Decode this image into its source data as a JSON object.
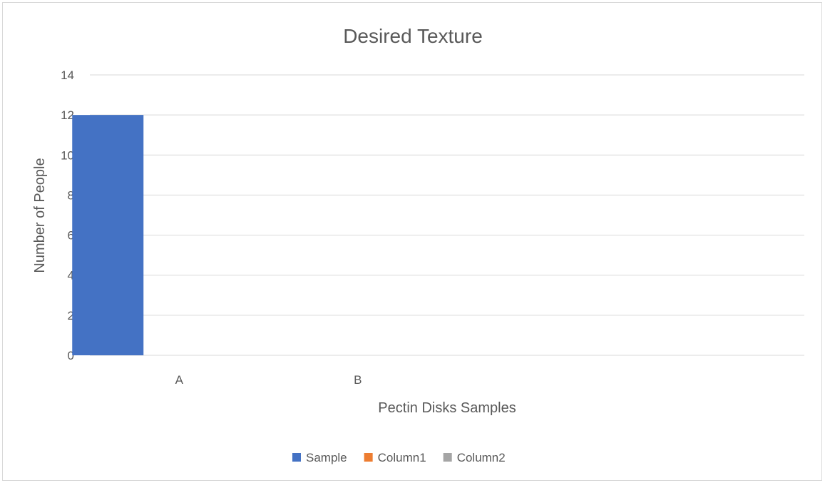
{
  "chart_data": {
    "type": "bar",
    "title": "Desired Texture",
    "xlabel": "Pectin Disks Samples",
    "ylabel": "Number of People",
    "categories": [
      "A",
      "B",
      "",
      ""
    ],
    "series": [
      {
        "name": "Sample",
        "values": [
          12,
          null,
          null,
          null
        ],
        "color": "#4472c4"
      },
      {
        "name": "Column1",
        "values": [
          null,
          null,
          null,
          null
        ],
        "color": "#ed7d31"
      },
      {
        "name": "Column2",
        "values": [
          null,
          null,
          null,
          null
        ],
        "color": "#a5a5a5"
      }
    ],
    "ylim": [
      0,
      14
    ],
    "yticks": [
      0,
      2,
      4,
      6,
      8,
      10,
      12,
      14
    ],
    "grid": true,
    "gridline_color": "#d9d9d9",
    "legend": "bottom"
  }
}
